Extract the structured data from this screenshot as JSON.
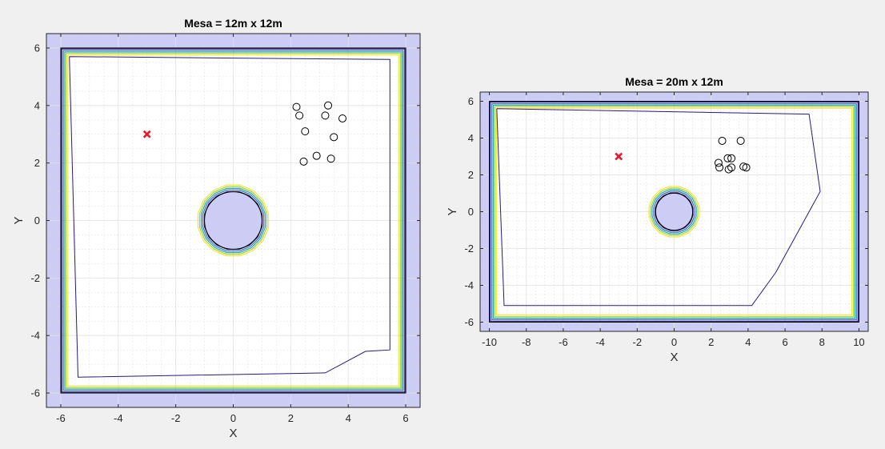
{
  "figure": {
    "background": "#f0f0f0"
  },
  "chart_data": [
    {
      "type": "contour",
      "title": "Mesa = 12m x 12m",
      "xlabel": "X",
      "ylabel": "Y",
      "xlim": [
        -6.5,
        6.5
      ],
      "ylim": [
        -6.5,
        6.5
      ],
      "xticks": [
        -6,
        -4,
        -2,
        0,
        2,
        4,
        6
      ],
      "yticks": [
        -6,
        -4,
        -2,
        0,
        2,
        4,
        6
      ],
      "xticklabels": [
        "-6",
        "-4",
        "-2",
        "0",
        "2",
        "4",
        "6"
      ],
      "yticklabels": [
        "-6",
        "-4",
        "-2",
        "0",
        "2",
        "4",
        "6"
      ],
      "grid": true,
      "minor_grid": true,
      "table_boundary": {
        "xmin": -6,
        "xmax": 6,
        "ymin": -6,
        "ymax": 6
      },
      "outside_fill": "#ccccf5",
      "obstacle": {
        "type": "circle",
        "center": [
          0,
          0
        ],
        "radius": 1.0,
        "fill": "#ccccf5"
      },
      "contour_colors": [
        "#2a1a7a",
        "#3b6fb5",
        "#2aa8a0",
        "#9fd43c",
        "#f5e53a"
      ],
      "inner_contour": {
        "color": "#2a1a7a",
        "points": [
          [
            -5.7,
            5.7
          ],
          [
            5.45,
            5.6
          ],
          [
            5.45,
            -4.5
          ],
          [
            4.6,
            -4.55
          ],
          [
            3.2,
            -5.3
          ],
          [
            -5.4,
            -5.45
          ],
          [
            -5.7,
            5.7
          ]
        ]
      },
      "robots": {
        "marker": "circle",
        "color": "#000000",
        "points": [
          [
            2.2,
            3.95
          ],
          [
            2.3,
            3.65
          ],
          [
            2.5,
            3.1
          ],
          [
            3.3,
            4.0
          ],
          [
            3.2,
            3.65
          ],
          [
            3.8,
            3.55
          ],
          [
            3.5,
            2.9
          ],
          [
            2.45,
            2.05
          ],
          [
            2.9,
            2.25
          ],
          [
            3.4,
            2.15
          ]
        ]
      },
      "goal": {
        "marker": "x",
        "color": "#e8162a",
        "point": [
          -3,
          3
        ]
      }
    },
    {
      "type": "contour",
      "title": "Mesa = 20m x 12m",
      "xlabel": "X",
      "ylabel": "Y",
      "xlim": [
        -10.5,
        10.5
      ],
      "ylim": [
        -6.5,
        6.5
      ],
      "xticks": [
        -10,
        -8,
        -6,
        -4,
        -2,
        0,
        2,
        4,
        6,
        8,
        10
      ],
      "yticks": [
        -6,
        -4,
        -2,
        0,
        2,
        4,
        6
      ],
      "xticklabels": [
        "-10",
        "-8",
        "-6",
        "-4",
        "-2",
        "0",
        "2",
        "4",
        "6",
        "8",
        "10"
      ],
      "yticklabels": [
        "-6",
        "-4",
        "-2",
        "0",
        "2",
        "4",
        "6"
      ],
      "grid": true,
      "minor_grid": true,
      "table_boundary": {
        "xmin": -10,
        "xmax": 10,
        "ymin": -6,
        "ymax": 6
      },
      "outside_fill": "#ccccf5",
      "obstacle": {
        "type": "circle",
        "center": [
          0,
          0
        ],
        "radius": 1.0,
        "fill": "#ccccf5"
      },
      "contour_colors": [
        "#2a1a7a",
        "#3b6fb5",
        "#2aa8a0",
        "#9fd43c",
        "#f5e53a"
      ],
      "inner_contour": {
        "color": "#2a1a7a",
        "points": [
          [
            -9.6,
            5.6
          ],
          [
            7.3,
            5.3
          ],
          [
            7.9,
            1.1
          ],
          [
            5.5,
            -3.3
          ],
          [
            4.2,
            -5.1
          ],
          [
            -9.2,
            -5.1
          ],
          [
            -9.6,
            5.6
          ]
        ]
      },
      "robots": {
        "marker": "circle",
        "color": "#000000",
        "points": [
          [
            2.6,
            3.85
          ],
          [
            3.6,
            3.85
          ],
          [
            2.4,
            2.65
          ],
          [
            2.45,
            2.4
          ],
          [
            2.9,
            2.9
          ],
          [
            3.1,
            2.9
          ],
          [
            3.1,
            2.4
          ],
          [
            2.95,
            2.3
          ],
          [
            3.75,
            2.45
          ],
          [
            3.9,
            2.4
          ]
        ]
      },
      "goal": {
        "marker": "x",
        "color": "#e8162a",
        "point": [
          -3,
          3
        ]
      }
    }
  ]
}
